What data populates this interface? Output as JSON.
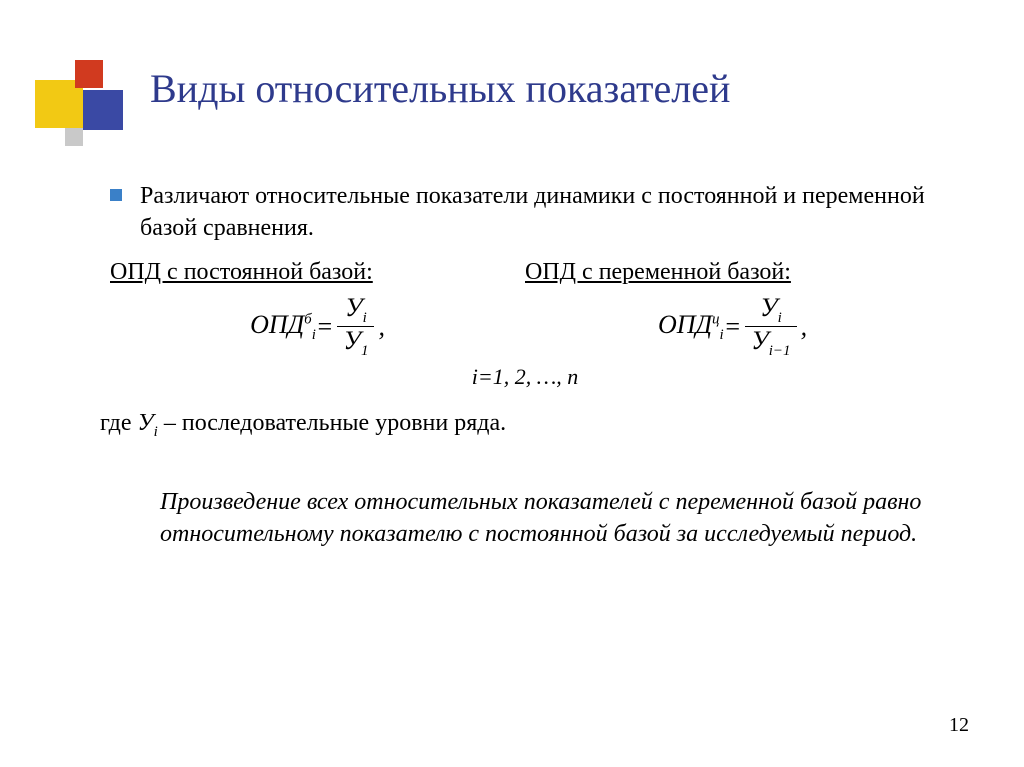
{
  "colors": {
    "title": "#2e3a8c",
    "bullet": "#3a80c8",
    "logo_yellow": "#f2c914",
    "logo_red": "#d13a1f",
    "logo_blue": "#3a49a4",
    "logo_grey": "#c9c9c9",
    "background": "#ffffff",
    "text": "#000000"
  },
  "title": "Виды относительных показателей",
  "bullet_text": "Различают относительные показатели динамики с постоянной и переменной базой сравнения.",
  "left": {
    "heading": "ОПД с постоянной базой:",
    "lhs_base": "ОПД",
    "lhs_sub": "i",
    "lhs_sup": "б",
    "eq": " = ",
    "num_base": "У",
    "num_sub": "i",
    "den_base": "У",
    "den_sub": "1",
    "comma": ","
  },
  "right": {
    "heading": "ОПД с переменной базой:",
    "lhs_base": "ОПД",
    "lhs_sub": "i",
    "lhs_sup": "ц",
    "eq": " = ",
    "num_base": "У",
    "num_sub": "i",
    "den_base": "У",
    "den_sub": "i−1",
    "comma": ","
  },
  "irange": "i=1, 2, …, n",
  "where_prefix": "где ",
  "where_var_base": "У",
  "where_var_sub": "i",
  "where_suffix": " – последовательные уровни ряда.",
  "theorem": "Произведение всех относительных показателей с переменной базой равно относительному показателю с постоянной базой за исследуемый период.",
  "page_number": "12",
  "typography": {
    "title_fontsize": 40,
    "body_fontsize": 24,
    "formula_fontsize": 26,
    "subscript_fontsize": 15,
    "font_family": "Times New Roman"
  }
}
